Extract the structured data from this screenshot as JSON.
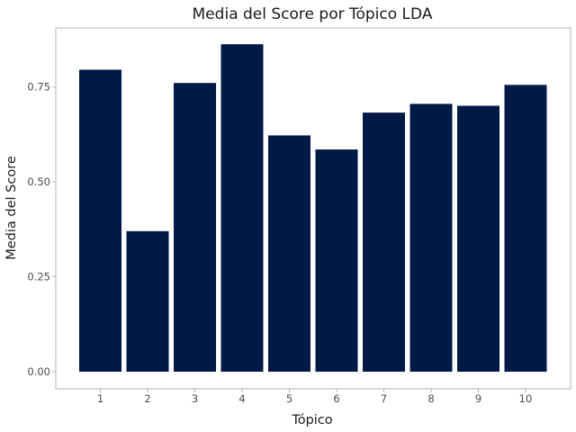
{
  "chart_data": {
    "type": "bar",
    "title": "Media del Score por Tópico LDA",
    "xlabel": "Tópico",
    "ylabel": "Media del Score",
    "categories": [
      "1",
      "2",
      "3",
      "4",
      "5",
      "6",
      "7",
      "8",
      "9",
      "10"
    ],
    "values": [
      0.795,
      0.37,
      0.76,
      0.862,
      0.622,
      0.585,
      0.682,
      0.705,
      0.7,
      0.755
    ],
    "yticks": [
      0.0,
      0.25,
      0.5,
      0.75
    ],
    "ytick_labels": [
      "0.00",
      "0.25",
      "0.50",
      "0.75"
    ],
    "ylim": [
      -0.045,
      0.905
    ],
    "grid": false,
    "legend": "none",
    "bar_color": "#001a45",
    "panel_border_color": "#b3b3b3",
    "tick_color": "#b3b3b3"
  }
}
